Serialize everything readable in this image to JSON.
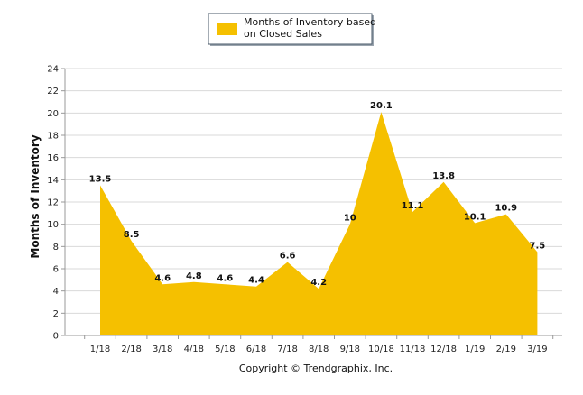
{
  "chart_data": {
    "type": "area",
    "categories": [
      "1/18",
      "2/18",
      "3/18",
      "4/18",
      "5/18",
      "6/18",
      "7/18",
      "8/18",
      "9/18",
      "10/18",
      "11/18",
      "12/18",
      "1/19",
      "2/19",
      "3/19"
    ],
    "series": [
      {
        "name": "Months of Inventory based on Closed Sales",
        "values": [
          13.5,
          8.5,
          4.6,
          4.8,
          4.6,
          4.4,
          6.6,
          4.2,
          10,
          20.1,
          11.1,
          13.8,
          10.1,
          10.9,
          7.5
        ],
        "color": "#F5C000"
      }
    ],
    "data_labels": [
      "13.5",
      "8.5",
      "4.6",
      "4.8",
      "4.6",
      "4.4",
      "6.6",
      "4.2",
      "10",
      "20.1",
      "11.1",
      "13.8",
      "10.1",
      "10.9",
      "7.5"
    ],
    "legend": {
      "lines": [
        "Months of Inventory based",
        "on Closed Sales"
      ],
      "position": "top"
    },
    "ylabel": "Months of Inventory",
    "xlabel": "",
    "ylim": [
      0,
      24
    ],
    "yticks": [
      0,
      2,
      4,
      6,
      8,
      10,
      12,
      14,
      16,
      18,
      20,
      22,
      24
    ],
    "grid": true
  },
  "credit": "Copyright © Trendgraphix, Inc.",
  "colors": {
    "fill": "#F5C000",
    "grid": "#D9D9D9",
    "axis": "#999999",
    "legend_border": "#4A5A6A"
  }
}
